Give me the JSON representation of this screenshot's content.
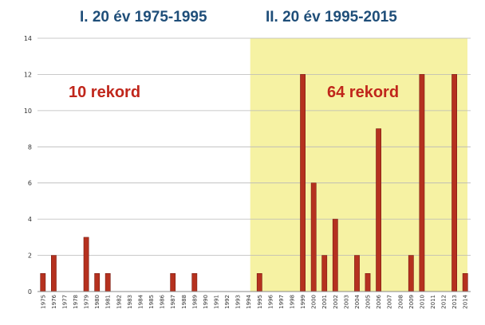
{
  "chart_data": {
    "type": "bar",
    "periods": [
      {
        "title": "I. 20 év 1975-1995",
        "records_label": "10 rekord",
        "start_year": 1975,
        "end_year": 1995,
        "highlight": false
      },
      {
        "title": "II. 20 év 1995-2015",
        "records_label": "64 rekord",
        "start_year": 1995,
        "end_year": 2015,
        "highlight": true
      }
    ],
    "categories": [
      "1975",
      "1976",
      "1977",
      "1978",
      "1979",
      "1980",
      "1981",
      "1982",
      "1983",
      "1984",
      "1985",
      "1986",
      "1987",
      "1988",
      "1989",
      "1990",
      "1991",
      "1992",
      "1993",
      "1994",
      "1995",
      "1996",
      "1997",
      "1998",
      "1999",
      "2000",
      "2001",
      "2002",
      "2003",
      "2004",
      "2005",
      "2006",
      "2007",
      "2008",
      "2009",
      "2010",
      "2011",
      "2012",
      "2013",
      "2014"
    ],
    "values": [
      1,
      2,
      0,
      0,
      3,
      1,
      1,
      0,
      0,
      0,
      0,
      0,
      1,
      0,
      1,
      0,
      0,
      0,
      0,
      0,
      1,
      0,
      0,
      0,
      12,
      6,
      2,
      4,
      0,
      2,
      1,
      9,
      0,
      0,
      2,
      12,
      0,
      0,
      12,
      1
    ],
    "ylim": [
      0,
      14
    ],
    "yticks": [
      "0",
      "2",
      "4",
      "6",
      "8",
      "10",
      "12",
      "14"
    ],
    "grid": true,
    "colors": {
      "bar": "#b5311f",
      "bar_edge": "#7a1a10",
      "highlight": "#f6f2a3",
      "grid": "#b8b8b8",
      "title": "#1f4e79",
      "record_label": "#c0261b"
    }
  }
}
